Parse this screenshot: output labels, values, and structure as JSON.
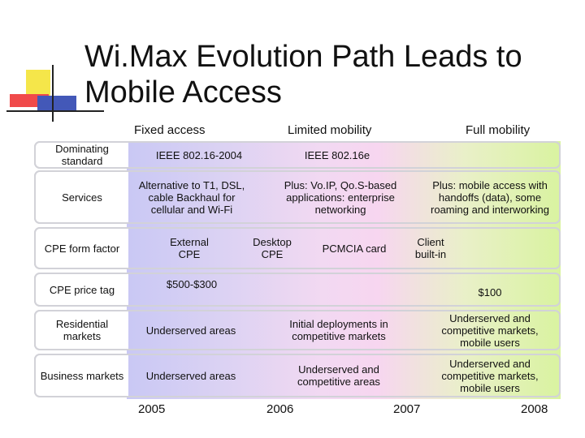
{
  "slide": {
    "title_line1": "Wi.Max Evolution Path Leads to",
    "title_line2": "Mobile Access"
  },
  "columns": {
    "fixed": "Fixed access",
    "limited": "Limited mobility",
    "full": "Full mobility"
  },
  "rows": {
    "standard": {
      "label": "Dominating standard",
      "cells": [
        "IEEE 802.16-2004",
        "IEEE 802.16e"
      ]
    },
    "services": {
      "label": "Services",
      "cells": [
        "Alternative to T1, DSL, cable Backhaul for cellular and Wi-Fi",
        "Plus: Vo.IP, Qo.S-based applications: enterprise networking",
        "Plus: mobile access with handoffs (data), some roaming and interworking"
      ]
    },
    "cpe_form": {
      "label": "CPE form factor",
      "cells": [
        "External CPE",
        "Desktop CPE",
        "PCMCIA card",
        "Client built-in"
      ]
    },
    "cpe_price": {
      "label": "CPE price tag",
      "cells": [
        "$500-$300",
        "$100"
      ]
    },
    "residential": {
      "label": "Residential markets",
      "cells": [
        "Underserved areas",
        "Initial deployments in competitive markets",
        "Underserved and competitive markets, mobile users"
      ]
    },
    "business": {
      "label": "Business markets",
      "cells": [
        "Underserved areas",
        "Underserved and competitive areas",
        "Underserved and competitive markets, mobile users"
      ]
    }
  },
  "years": [
    "2005",
    "2006",
    "2007",
    "2008"
  ],
  "colors": {
    "band_left": "#c9c8f4",
    "band_mid": "#f7d6f0",
    "band_right": "#d9f3a0",
    "row_border": "#d2d2d8"
  }
}
